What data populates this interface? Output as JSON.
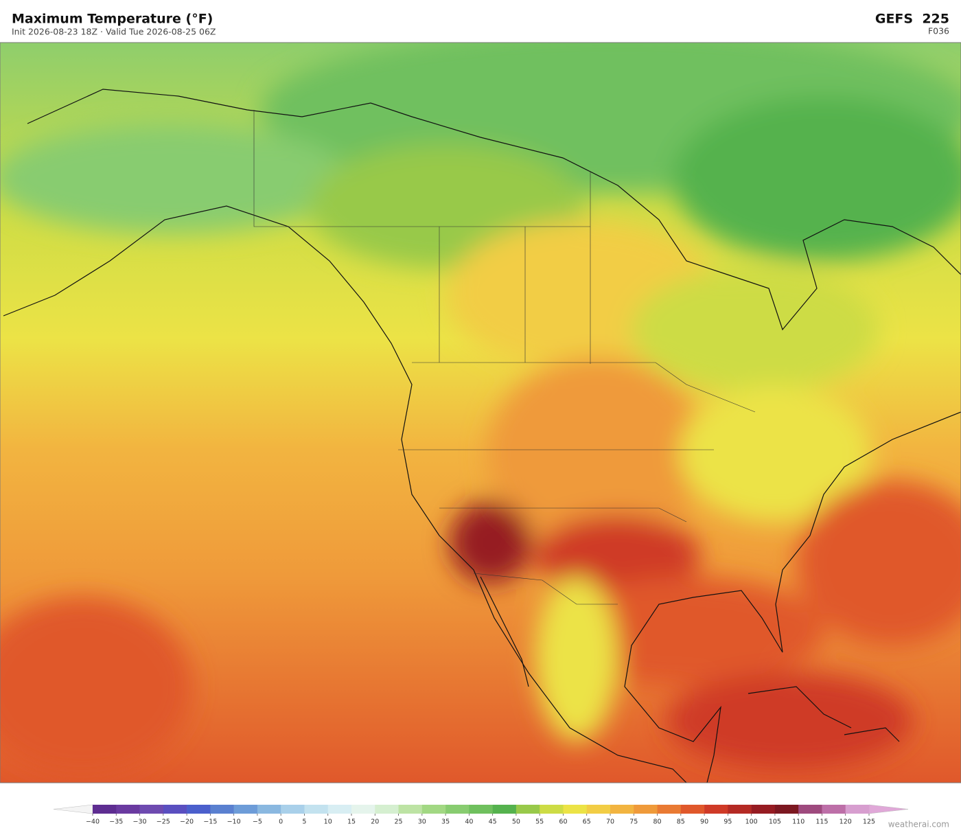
{
  "header": {
    "title": "Maximum Temperature  (°F)",
    "subtitle": "Init 2026-08-23 18Z   ·   Valid Tue 2026-08-25 06Z",
    "model": "GEFS  225",
    "forecast_hour": "F036"
  },
  "colorbar": {
    "ticks": [
      {
        "value": -40,
        "label": "−40"
      },
      {
        "value": -35,
        "label": "−35"
      },
      {
        "value": -30,
        "label": "−30"
      },
      {
        "value": -25,
        "label": "−25"
      },
      {
        "value": -20,
        "label": "−20"
      },
      {
        "value": -15,
        "label": "−15"
      },
      {
        "value": -10,
        "label": "−10"
      },
      {
        "value": -5,
        "label": "−5"
      },
      0,
      5,
      10,
      15,
      20,
      25,
      30,
      35,
      40,
      45,
      50,
      55,
      60,
      65,
      70,
      75,
      80,
      85,
      90,
      95,
      100,
      105,
      110,
      115,
      120,
      125
    ],
    "colors": [
      "#5e2d91",
      "#6a3aa0",
      "#6e4bb0",
      "#5a4fc0",
      "#4b5fcc",
      "#5a80d0",
      "#6d9cd8",
      "#8ab8e0",
      "#a9d0ea",
      "#c3e2ef",
      "#d8eef3",
      "#e5f4ec",
      "#d5efd0",
      "#bde3a4",
      "#a2d883",
      "#88cc70",
      "#6fc05e",
      "#55b24e",
      "#98c94a",
      "#cddc45",
      "#ece346",
      "#f2cd45",
      "#f2b440",
      "#ef9a3a",
      "#e97a33",
      "#e0582b",
      "#cf3a27",
      "#b42a24",
      "#961c22",
      "#7c1821",
      "#9e4a7e",
      "#bd6fa8",
      "#d79ecf"
    ],
    "under_color": "#f4f4f4",
    "over_color": "#e0a8d8"
  },
  "footer": {
    "credit": "weatherai.com"
  }
}
